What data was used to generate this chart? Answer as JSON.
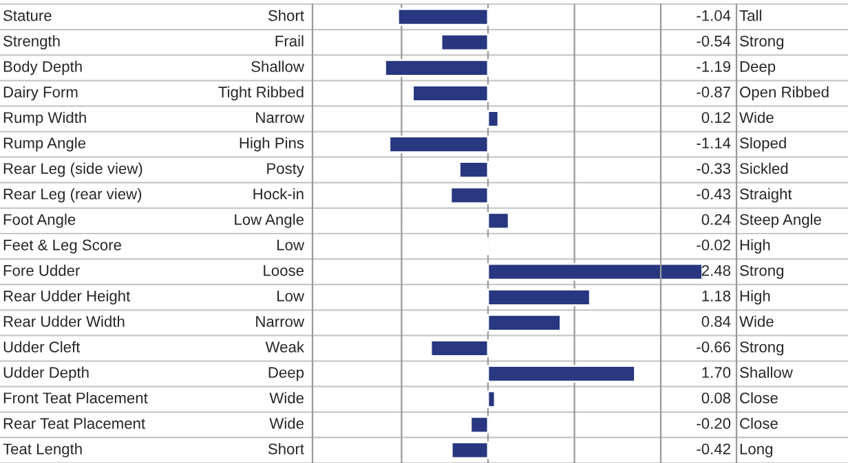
{
  "chart_data": {
    "type": "bar",
    "orientation": "horizontal",
    "color": "#28377f",
    "categories": [
      "Stature",
      "Strength",
      "Body Depth",
      "Dairy Form",
      "Rump Width",
      "Rump Angle",
      "Rear Leg (side view)",
      "Rear Leg (rear view)",
      "Foot Angle",
      "Feet & Leg Score",
      "Fore Udder",
      "Rear Udder Height",
      "Rear Udder Width",
      "Udder Cleft",
      "Udder Depth",
      "Front Teat Placement",
      "Rear Teat Placement",
      "Teat Length"
    ],
    "values": [
      -1.04,
      -0.54,
      -1.19,
      -0.87,
      0.12,
      -1.14,
      -0.33,
      -0.43,
      0.24,
      -0.02,
      2.48,
      1.18,
      0.84,
      -0.66,
      1.7,
      0.08,
      -0.2,
      -0.42
    ],
    "value_labels": [
      "-1.04",
      "-0.54",
      "-1.19",
      "-0.87",
      "0.12",
      "-1.14",
      "-0.33",
      "-0.43",
      "0.24",
      "-0.02",
      "2.48",
      "1.18",
      "0.84",
      "-0.66",
      "1.70",
      "0.08",
      "-0.20",
      "-0.42"
    ],
    "annotations": [
      "Short",
      "Frail",
      "Shallow",
      "Tight Ribbed",
      "Narrow",
      "High Pins",
      "Posty",
      "Hock-in",
      "Low Angle",
      "Low",
      "Loose",
      "Low",
      "Narrow",
      "Weak",
      "Deep",
      "Wide",
      "Wide",
      "Short",
      "Tall",
      "Strong",
      "Deep",
      "Open Ribbed",
      "Wide",
      "Sloped",
      "Sickled",
      "Straight",
      "Steep Angle",
      "High",
      "Strong",
      "High",
      "Wide",
      "Strong",
      "Shallow",
      "Close",
      "Close",
      "Long"
    ],
    "xlim": [
      -2.03,
      2.48
    ],
    "xticks": [
      {
        "value": -1,
        "label": null
      },
      {
        "value": 0,
        "label": null
      },
      {
        "value": 1,
        "label": null
      }
    ],
    "grid": "x"
  }
}
